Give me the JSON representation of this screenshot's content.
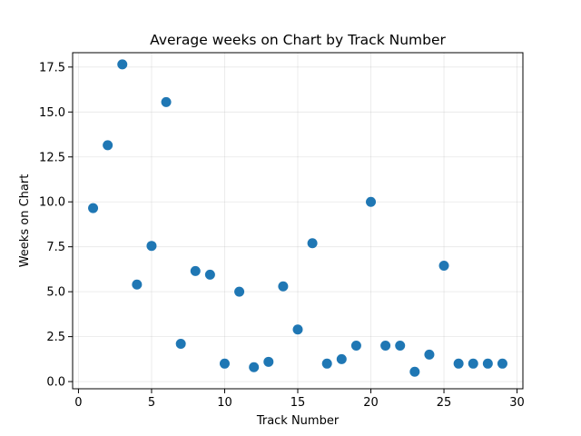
{
  "chart_data": {
    "type": "scatter",
    "title": "Average weeks on Chart by Track Number",
    "xlabel": "Track Number",
    "ylabel": "Weeks on Chart",
    "xlim": [
      -0.4,
      30.4
    ],
    "ylim": [
      -0.4,
      18.3
    ],
    "xticks": [
      0,
      5,
      10,
      15,
      20,
      25,
      30
    ],
    "xtick_labels": [
      "0",
      "5",
      "10",
      "15",
      "20",
      "25",
      "30"
    ],
    "yticks": [
      0,
      2.5,
      5,
      7.5,
      10,
      12.5,
      15,
      17.5
    ],
    "ytick_labels": [
      "0.0",
      "2.5",
      "5.0",
      "7.5",
      "10.0",
      "12.5",
      "15.0",
      "17.5"
    ],
    "grid": true,
    "color": "#1f77b4",
    "points": [
      {
        "x": 1,
        "y": 9.65
      },
      {
        "x": 2,
        "y": 13.15
      },
      {
        "x": 3,
        "y": 17.65
      },
      {
        "x": 4,
        "y": 5.4
      },
      {
        "x": 5,
        "y": 7.55
      },
      {
        "x": 6,
        "y": 15.55
      },
      {
        "x": 7,
        "y": 2.1
      },
      {
        "x": 8,
        "y": 6.15
      },
      {
        "x": 9,
        "y": 5.95
      },
      {
        "x": 10,
        "y": 1.0
      },
      {
        "x": 11,
        "y": 5.0
      },
      {
        "x": 12,
        "y": 0.8
      },
      {
        "x": 13,
        "y": 1.1
      },
      {
        "x": 14,
        "y": 5.3
      },
      {
        "x": 15,
        "y": 2.9
      },
      {
        "x": 16,
        "y": 7.7
      },
      {
        "x": 17,
        "y": 1.0
      },
      {
        "x": 18,
        "y": 1.25
      },
      {
        "x": 19,
        "y": 2.0
      },
      {
        "x": 20,
        "y": 10.0
      },
      {
        "x": 21,
        "y": 2.0
      },
      {
        "x": 22,
        "y": 2.0
      },
      {
        "x": 23,
        "y": 0.55
      },
      {
        "x": 24,
        "y": 1.5
      },
      {
        "x": 25,
        "y": 6.45
      },
      {
        "x": 26,
        "y": 1.0
      },
      {
        "x": 27,
        "y": 1.0
      },
      {
        "x": 28,
        "y": 1.0
      },
      {
        "x": 29,
        "y": 1.0
      }
    ]
  }
}
